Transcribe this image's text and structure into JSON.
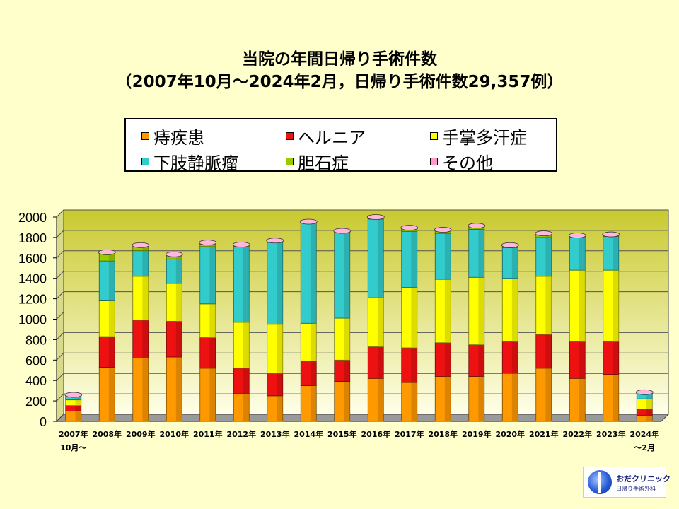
{
  "chart_data": {
    "type": "bar",
    "stacked": true,
    "title": "当院の年間日帰り手術件数",
    "subtitle": "（2007年10月～2024年2月，日帰り手術件数29,357例）",
    "categories": [
      [
        "2007年",
        "10月～"
      ],
      [
        "2008年"
      ],
      [
        "2009年"
      ],
      [
        "2010年"
      ],
      [
        "2011年"
      ],
      [
        "2012年"
      ],
      [
        "2013年"
      ],
      [
        "2014年"
      ],
      [
        "2015年"
      ],
      [
        "2016年"
      ],
      [
        "2017年"
      ],
      [
        "2018年"
      ],
      [
        "2019年"
      ],
      [
        "2020年"
      ],
      [
        "2021年"
      ],
      [
        "2022年"
      ],
      [
        "2023年"
      ],
      [
        "2024年",
        "～2月"
      ]
    ],
    "ylim": [
      0,
      2000
    ],
    "yticks": [
      "0",
      "200",
      "400",
      "600",
      "800",
      "1000",
      "1200",
      "1400",
      "1600",
      "1800",
      "2000"
    ],
    "grid": true,
    "legend_position": "top",
    "series": [
      {
        "name": "痔疾患",
        "color": "#ff9900",
        "values": [
          100,
          530,
          620,
          630,
          520,
          270,
          250,
          350,
          390,
          420,
          380,
          440,
          440,
          470,
          520,
          420,
          460,
          60
        ]
      },
      {
        "name": "ヘルニア",
        "color": "#ee1111",
        "values": [
          55,
          300,
          370,
          350,
          300,
          250,
          220,
          240,
          210,
          310,
          340,
          330,
          310,
          310,
          330,
          360,
          320,
          60
        ]
      },
      {
        "name": "手掌多汗症",
        "color": "#ffff00",
        "values": [
          55,
          350,
          430,
          370,
          330,
          450,
          480,
          370,
          410,
          480,
          590,
          620,
          660,
          620,
          570,
          700,
          700,
          100
        ]
      },
      {
        "name": "下肢静脈瘤",
        "color": "#33cccc",
        "values": [
          40,
          390,
          250,
          240,
          560,
          740,
          800,
          980,
          840,
          770,
          550,
          450,
          470,
          300,
          380,
          320,
          330,
          60
        ]
      },
      {
        "name": "胆石症",
        "color": "#99cc00",
        "values": [
          5,
          70,
          40,
          30,
          25,
          10,
          10,
          5,
          5,
          10,
          25,
          25,
          25,
          15,
          30,
          10,
          10,
          0
        ]
      },
      {
        "name": "その他",
        "color": "#ff99cc",
        "values": [
          5,
          15,
          15,
          15,
          15,
          10,
          10,
          10,
          10,
          10,
          10,
          10,
          10,
          10,
          10,
          10,
          10,
          5
        ]
      }
    ]
  },
  "logo": {
    "name": "おだクリニック",
    "sub": "日帰り手術外科"
  }
}
